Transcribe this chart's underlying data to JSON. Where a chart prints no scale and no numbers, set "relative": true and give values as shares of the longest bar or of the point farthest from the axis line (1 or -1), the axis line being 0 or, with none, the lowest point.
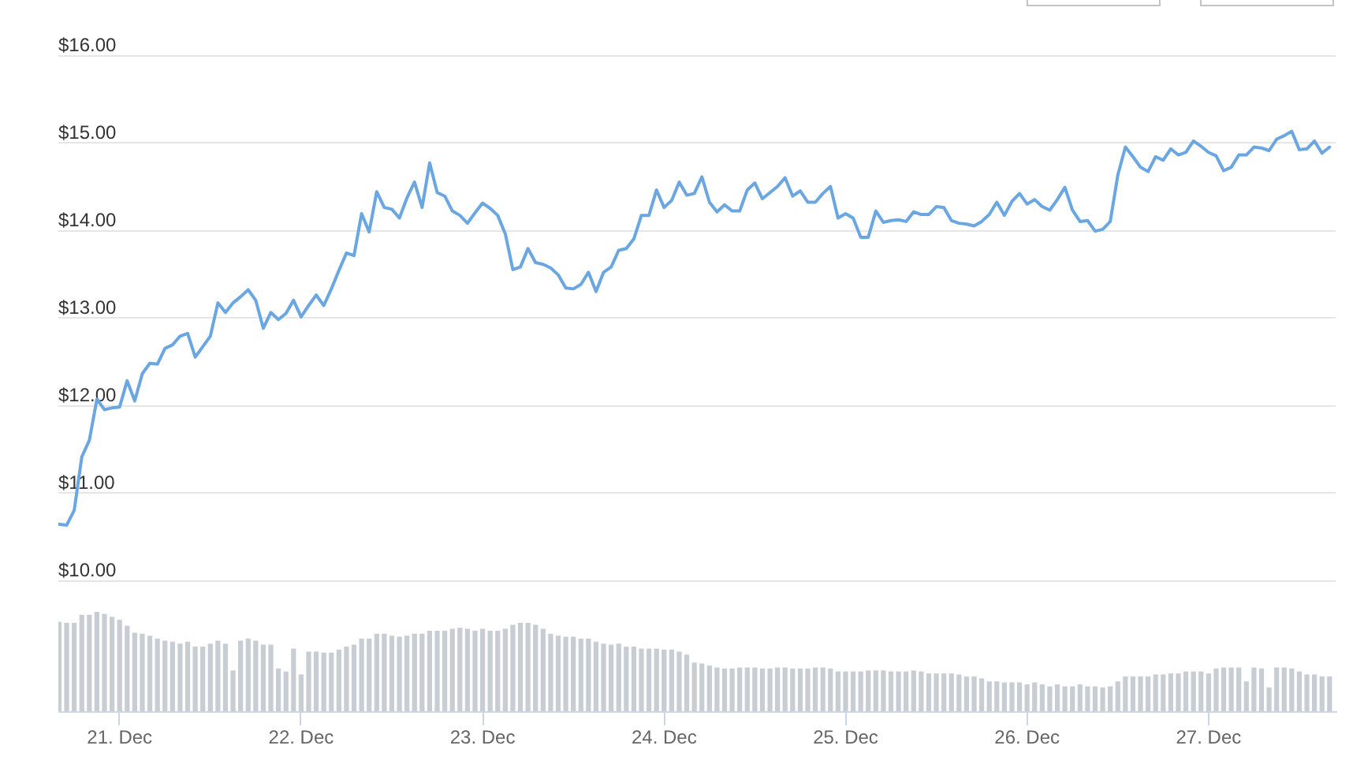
{
  "chart_data": [
    {
      "type": "line",
      "x": [
        "--12-20T16:00",
        "--12-20T17:00",
        "--12-20T18:00",
        "--12-20T19:00",
        "--12-20T20:00",
        "--12-20T21:00",
        "--12-20T22:00",
        "--12-20T23:00",
        "--12-21T00:00",
        "--12-21T01:00",
        "--12-21T02:00",
        "--12-21T03:00",
        "--12-21T04:00",
        "--12-21T05:00",
        "--12-21T06:00",
        "--12-21T07:00",
        "--12-21T08:00",
        "--12-21T09:00",
        "--12-21T10:00",
        "--12-21T11:00",
        "--12-21T12:00",
        "--12-21T13:00",
        "--12-21T14:00",
        "--12-21T15:00",
        "--12-21T16:00",
        "--12-21T17:00",
        "--12-21T18:00",
        "--12-21T19:00",
        "--12-21T20:00",
        "--12-21T21:00",
        "--12-21T22:00",
        "--12-21T23:00",
        "--12-22T00:00",
        "--12-22T01:00",
        "--12-22T02:00",
        "--12-22T03:00",
        "--12-22T04:00",
        "--12-22T05:00",
        "--12-22T06:00",
        "--12-22T07:00",
        "--12-22T08:00",
        "--12-22T09:00",
        "--12-22T10:00",
        "--12-22T11:00",
        "--12-22T12:00",
        "--12-22T13:00",
        "--12-22T14:00",
        "--12-22T15:00",
        "--12-22T16:00",
        "--12-22T17:00",
        "--12-22T18:00",
        "--12-22T19:00",
        "--12-22T20:00",
        "--12-22T21:00",
        "--12-22T22:00",
        "--12-22T23:00",
        "--12-23T00:00",
        "--12-23T01:00",
        "--12-23T02:00",
        "--12-23T03:00",
        "--12-23T04:00",
        "--12-23T05:00",
        "--12-23T06:00",
        "--12-23T07:00",
        "--12-23T08:00",
        "--12-23T09:00",
        "--12-23T10:00",
        "--12-23T11:00",
        "--12-23T12:00",
        "--12-23T13:00",
        "--12-23T14:00",
        "--12-23T15:00",
        "--12-23T16:00",
        "--12-23T17:00",
        "--12-23T18:00",
        "--12-23T19:00",
        "--12-23T20:00",
        "--12-23T21:00",
        "--12-23T22:00",
        "--12-23T23:00",
        "--12-24T00:00",
        "--12-24T01:00",
        "--12-24T02:00",
        "--12-24T03:00",
        "--12-24T04:00",
        "--12-24T05:00",
        "--12-24T06:00",
        "--12-24T07:00",
        "--12-24T08:00",
        "--12-24T09:00",
        "--12-24T10:00",
        "--12-24T11:00",
        "--12-24T12:00",
        "--12-24T13:00",
        "--12-24T14:00",
        "--12-24T15:00",
        "--12-24T16:00",
        "--12-24T17:00",
        "--12-24T18:00",
        "--12-24T19:00",
        "--12-24T20:00",
        "--12-24T21:00",
        "--12-24T22:00",
        "--12-24T23:00",
        "--12-25T00:00",
        "--12-25T01:00",
        "--12-25T02:00",
        "--12-25T03:00",
        "--12-25T04:00",
        "--12-25T05:00",
        "--12-25T06:00",
        "--12-25T07:00",
        "--12-25T08:00",
        "--12-25T09:00",
        "--12-25T10:00",
        "--12-25T11:00",
        "--12-25T12:00",
        "--12-25T13:00",
        "--12-25T14:00",
        "--12-25T15:00",
        "--12-25T16:00",
        "--12-25T17:00",
        "--12-25T18:00",
        "--12-25T19:00",
        "--12-25T20:00",
        "--12-25T21:00",
        "--12-25T22:00",
        "--12-25T23:00",
        "--12-26T00:00",
        "--12-26T01:00",
        "--12-26T02:00",
        "--12-26T03:00",
        "--12-26T04:00",
        "--12-26T05:00",
        "--12-26T06:00",
        "--12-26T07:00",
        "--12-26T08:00",
        "--12-26T09:00",
        "--12-26T10:00",
        "--12-26T11:00",
        "--12-26T12:00",
        "--12-26T13:00",
        "--12-26T14:00",
        "--12-26T15:00",
        "--12-26T16:00",
        "--12-26T17:00",
        "--12-26T18:00",
        "--12-26T19:00",
        "--12-26T20:00",
        "--12-26T21:00",
        "--12-26T22:00",
        "--12-26T23:00",
        "--12-27T00:00",
        "--12-27T01:00",
        "--12-27T02:00",
        "--12-27T03:00",
        "--12-27T04:00",
        "--12-27T05:00",
        "--12-27T06:00",
        "--12-27T07:00",
        "--12-27T08:00",
        "--12-27T09:00",
        "--12-27T10:00",
        "--12-27T11:00",
        "--12-27T12:00",
        "--12-27T13:00",
        "--12-27T14:00",
        "--12-27T15:00",
        "--12-27T16:00"
      ],
      "values": [
        10.64,
        10.63,
        10.8,
        11.41,
        11.6,
        12.07,
        11.95,
        11.97,
        11.98,
        12.28,
        12.05,
        12.36,
        12.48,
        12.47,
        12.65,
        12.69,
        12.79,
        12.82,
        12.55,
        12.67,
        12.79,
        13.17,
        13.06,
        13.17,
        13.24,
        13.32,
        13.2,
        12.88,
        13.06,
        12.98,
        13.05,
        13.2,
        13.01,
        13.14,
        13.26,
        13.14,
        13.33,
        13.54,
        13.74,
        13.71,
        14.19,
        13.98,
        14.44,
        14.26,
        14.24,
        14.14,
        14.37,
        14.55,
        14.26,
        14.77,
        14.43,
        14.39,
        14.22,
        14.17,
        14.08,
        14.2,
        14.31,
        14.25,
        14.17,
        13.96,
        13.55,
        13.58,
        13.79,
        13.63,
        13.61,
        13.57,
        13.49,
        13.34,
        13.33,
        13.38,
        13.52,
        13.3,
        13.52,
        13.58,
        13.77,
        13.79,
        13.9,
        14.17,
        14.17,
        14.46,
        14.26,
        14.34,
        14.55,
        14.4,
        14.42,
        14.61,
        14.32,
        14.21,
        14.29,
        14.22,
        14.22,
        14.46,
        14.54,
        14.36,
        14.43,
        14.5,
        14.6,
        14.39,
        14.45,
        14.32,
        14.32,
        14.42,
        14.5,
        14.14,
        14.19,
        14.14,
        13.92,
        13.92,
        14.22,
        14.09,
        14.11,
        14.12,
        14.1,
        14.21,
        14.18,
        14.18,
        14.27,
        14.26,
        14.11,
        14.08,
        14.07,
        14.05,
        14.1,
        14.18,
        14.32,
        14.17,
        14.33,
        14.42,
        14.3,
        14.35,
        14.27,
        14.23,
        14.35,
        14.49,
        14.23,
        14.1,
        14.11,
        13.99,
        14.01,
        14.1,
        14.63,
        14.95,
        14.84,
        14.72,
        14.67,
        14.84,
        14.8,
        14.93,
        14.86,
        14.89,
        15.02,
        14.96,
        14.89,
        14.85,
        14.68,
        14.72,
        14.86,
        14.86,
        14.95,
        14.94,
        14.91,
        15.04,
        15.08,
        15.13,
        14.92,
        14.93,
        15.02,
        14.88,
        14.95
      ],
      "color": "#6aa6e2",
      "xlim": [
        "--12-20T15:54",
        "--12-27T16:48"
      ],
      "ylim": [
        10,
        16
      ],
      "yticks": [
        {
          "value": 10,
          "label": "$10.00"
        },
        {
          "value": 11,
          "label": "$11.00"
        },
        {
          "value": 12,
          "label": "$12.00"
        },
        {
          "value": 13,
          "label": "$13.00"
        },
        {
          "value": 14,
          "label": "$14.00"
        },
        {
          "value": 15,
          "label": "$15.00"
        },
        {
          "value": 16,
          "label": "$16.00"
        }
      ],
      "grid": "y",
      "tick_labels": "y",
      "marker": "none"
    },
    {
      "type": "bar",
      "relative": true,
      "x": [
        "--12-20T16:00",
        "--12-20T17:00",
        "--12-20T18:00",
        "--12-20T19:00",
        "--12-20T20:00",
        "--12-20T21:00",
        "--12-20T22:00",
        "--12-20T23:00",
        "--12-21T00:00",
        "--12-21T01:00",
        "--12-21T02:00",
        "--12-21T03:00",
        "--12-21T04:00",
        "--12-21T05:00",
        "--12-21T06:00",
        "--12-21T07:00",
        "--12-21T08:00",
        "--12-21T09:00",
        "--12-21T10:00",
        "--12-21T11:00",
        "--12-21T12:00",
        "--12-21T13:00",
        "--12-21T14:00",
        "--12-21T15:00",
        "--12-21T16:00",
        "--12-21T17:00",
        "--12-21T18:00",
        "--12-21T19:00",
        "--12-21T20:00",
        "--12-21T21:00",
        "--12-21T22:00",
        "--12-21T23:00",
        "--12-22T00:00",
        "--12-22T01:00",
        "--12-22T02:00",
        "--12-22T03:00",
        "--12-22T04:00",
        "--12-22T05:00",
        "--12-22T06:00",
        "--12-22T07:00",
        "--12-22T08:00",
        "--12-22T09:00",
        "--12-22T10:00",
        "--12-22T11:00",
        "--12-22T12:00",
        "--12-22T13:00",
        "--12-22T14:00",
        "--12-22T15:00",
        "--12-22T16:00",
        "--12-22T17:00",
        "--12-22T18:00",
        "--12-22T19:00",
        "--12-22T20:00",
        "--12-22T21:00",
        "--12-22T22:00",
        "--12-22T23:00",
        "--12-23T00:00",
        "--12-23T01:00",
        "--12-23T02:00",
        "--12-23T03:00",
        "--12-23T04:00",
        "--12-23T05:00",
        "--12-23T06:00",
        "--12-23T07:00",
        "--12-23T08:00",
        "--12-23T09:00",
        "--12-23T10:00",
        "--12-23T11:00",
        "--12-23T12:00",
        "--12-23T13:00",
        "--12-23T14:00",
        "--12-23T15:00",
        "--12-23T16:00",
        "--12-23T17:00",
        "--12-23T18:00",
        "--12-23T19:00",
        "--12-23T20:00",
        "--12-23T21:00",
        "--12-23T22:00",
        "--12-23T23:00",
        "--12-24T00:00",
        "--12-24T01:00",
        "--12-24T02:00",
        "--12-24T03:00",
        "--12-24T04:00",
        "--12-24T05:00",
        "--12-24T06:00",
        "--12-24T07:00",
        "--12-24T08:00",
        "--12-24T09:00",
        "--12-24T10:00",
        "--12-24T11:00",
        "--12-24T12:00",
        "--12-24T13:00",
        "--12-24T14:00",
        "--12-24T15:00",
        "--12-24T16:00",
        "--12-24T17:00",
        "--12-24T18:00",
        "--12-24T19:00",
        "--12-24T20:00",
        "--12-24T21:00",
        "--12-24T22:00",
        "--12-24T23:00",
        "--12-25T00:00",
        "--12-25T01:00",
        "--12-25T02:00",
        "--12-25T03:00",
        "--12-25T04:00",
        "--12-25T05:00",
        "--12-25T06:00",
        "--12-25T07:00",
        "--12-25T08:00",
        "--12-25T09:00",
        "--12-25T10:00",
        "--12-25T11:00",
        "--12-25T12:00",
        "--12-25T13:00",
        "--12-25T14:00",
        "--12-25T15:00",
        "--12-25T16:00",
        "--12-25T17:00",
        "--12-25T18:00",
        "--12-25T19:00",
        "--12-25T20:00",
        "--12-25T21:00",
        "--12-25T22:00",
        "--12-25T23:00",
        "--12-26T00:00",
        "--12-26T01:00",
        "--12-26T02:00",
        "--12-26T03:00",
        "--12-26T04:00",
        "--12-26T05:00",
        "--12-26T06:00",
        "--12-26T07:00",
        "--12-26T08:00",
        "--12-26T09:00",
        "--12-26T10:00",
        "--12-26T11:00",
        "--12-26T12:00",
        "--12-26T13:00",
        "--12-26T14:00",
        "--12-26T15:00",
        "--12-26T16:00",
        "--12-26T17:00",
        "--12-26T18:00",
        "--12-26T19:00",
        "--12-26T20:00",
        "--12-26T21:00",
        "--12-26T22:00",
        "--12-26T23:00",
        "--12-27T00:00",
        "--12-27T01:00",
        "--12-27T02:00",
        "--12-27T03:00",
        "--12-27T04:00",
        "--12-27T05:00",
        "--12-27T06:00",
        "--12-27T07:00",
        "--12-27T08:00",
        "--12-27T09:00",
        "--12-27T10:00",
        "--12-27T11:00",
        "--12-27T12:00",
        "--12-27T13:00",
        "--12-27T14:00",
        "--12-27T15:00",
        "--12-27T16:00"
      ],
      "values": [
        0.9,
        0.89,
        0.89,
        0.97,
        0.97,
        1,
        0.98,
        0.95,
        0.92,
        0.86,
        0.79,
        0.78,
        0.76,
        0.73,
        0.71,
        0.7,
        0.68,
        0.7,
        0.65,
        0.65,
        0.68,
        0.71,
        0.68,
        0.41,
        0.71,
        0.73,
        0.71,
        0.67,
        0.67,
        0.43,
        0.4,
        0.63,
        0.37,
        0.6,
        0.6,
        0.59,
        0.59,
        0.62,
        0.65,
        0.67,
        0.73,
        0.73,
        0.78,
        0.78,
        0.76,
        0.75,
        0.76,
        0.78,
        0.78,
        0.81,
        0.81,
        0.81,
        0.83,
        0.84,
        0.83,
        0.81,
        0.83,
        0.81,
        0.81,
        0.83,
        0.87,
        0.89,
        0.89,
        0.87,
        0.83,
        0.78,
        0.76,
        0.75,
        0.75,
        0.73,
        0.73,
        0.7,
        0.68,
        0.67,
        0.68,
        0.65,
        0.65,
        0.63,
        0.63,
        0.63,
        0.62,
        0.62,
        0.6,
        0.57,
        0.49,
        0.48,
        0.46,
        0.44,
        0.43,
        0.43,
        0.44,
        0.44,
        0.44,
        0.43,
        0.43,
        0.44,
        0.44,
        0.43,
        0.43,
        0.43,
        0.44,
        0.44,
        0.43,
        0.4,
        0.4,
        0.4,
        0.4,
        0.41,
        0.41,
        0.41,
        0.4,
        0.4,
        0.4,
        0.41,
        0.4,
        0.38,
        0.38,
        0.38,
        0.38,
        0.37,
        0.35,
        0.35,
        0.33,
        0.3,
        0.3,
        0.29,
        0.29,
        0.29,
        0.27,
        0.29,
        0.27,
        0.25,
        0.27,
        0.25,
        0.25,
        0.27,
        0.25,
        0.25,
        0.24,
        0.25,
        0.3,
        0.35,
        0.35,
        0.35,
        0.35,
        0.37,
        0.37,
        0.38,
        0.38,
        0.4,
        0.4,
        0.4,
        0.38,
        0.43,
        0.44,
        0.44,
        0.44,
        0.3,
        0.44,
        0.43,
        0.24,
        0.44,
        0.44,
        0.43,
        0.4,
        0.37,
        0.37,
        0.35,
        0.35
      ],
      "color": "#c8cdd4",
      "xlim": [
        "--12-20T15:54",
        "--12-27T16:48"
      ],
      "xticks": [
        {
          "value": "--12-21",
          "label": "21. Dec"
        },
        {
          "value": "--12-22",
          "label": "22. Dec"
        },
        {
          "value": "--12-23",
          "label": "23. Dec"
        },
        {
          "value": "--12-24",
          "label": "24. Dec"
        },
        {
          "value": "--12-25",
          "label": "25. Dec"
        },
        {
          "value": "--12-26",
          "label": "26. Dec"
        },
        {
          "value": "--12-27",
          "label": "27. Dec"
        }
      ]
    }
  ]
}
